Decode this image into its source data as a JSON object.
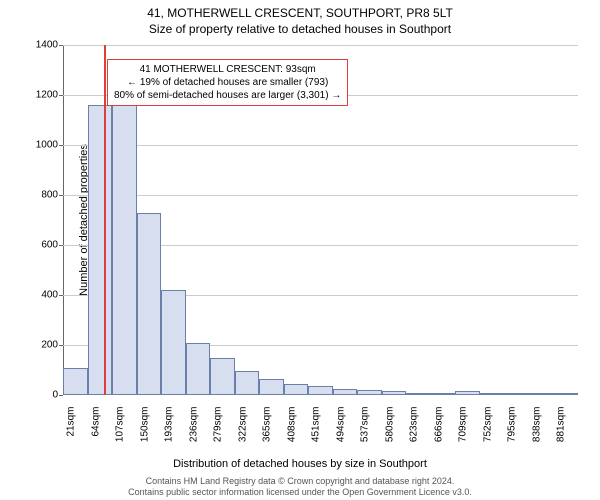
{
  "title_line1": "41, MOTHERWELL CRESCENT, SOUTHPORT, PR8 5LT",
  "title_line2": "Size of property relative to detached houses in Southport",
  "ylabel": "Number of detached properties",
  "xlabel": "Distribution of detached houses by size in Southport",
  "footer_line1": "Contains HM Land Registry data © Crown copyright and database right 2024.",
  "footer_line2": "Contains public sector information licensed under the Open Government Licence v3.0.",
  "chart": {
    "type": "histogram",
    "ylim": [
      0,
      1400
    ],
    "ytick_step": 200,
    "yticks": [
      0,
      200,
      400,
      600,
      800,
      1000,
      1200,
      1400
    ],
    "grid_color": "#cccccc",
    "bar_fill": "#d6deef",
    "bar_stroke": "#6b7fa8",
    "vline_color": "#d9413a",
    "vline_x": 93,
    "background_color": "#ffffff",
    "x_min": 21,
    "bin_width": 43,
    "xtick_labels": [
      "21sqm",
      "64sqm",
      "107sqm",
      "150sqm",
      "193sqm",
      "236sqm",
      "279sqm",
      "322sqm",
      "365sqm",
      "408sqm",
      "451sqm",
      "494sqm",
      "537sqm",
      "580sqm",
      "623sqm",
      "666sqm",
      "709sqm",
      "752sqm",
      "795sqm",
      "838sqm",
      "881sqm"
    ],
    "values": [
      110,
      1160,
      1165,
      730,
      420,
      210,
      150,
      95,
      65,
      45,
      35,
      25,
      20,
      15,
      8,
      3,
      18,
      2,
      1,
      1,
      1
    ],
    "label_fontsize": 10,
    "title_fontsize": 12
  },
  "annotation": {
    "line1": "41 MOTHERWELL CRESCENT: 93sqm",
    "line2": "← 19% of detached houses are smaller (793)",
    "line3": "80% of semi-detached houses are larger (3,301) →",
    "border_color": "#d9413a"
  }
}
